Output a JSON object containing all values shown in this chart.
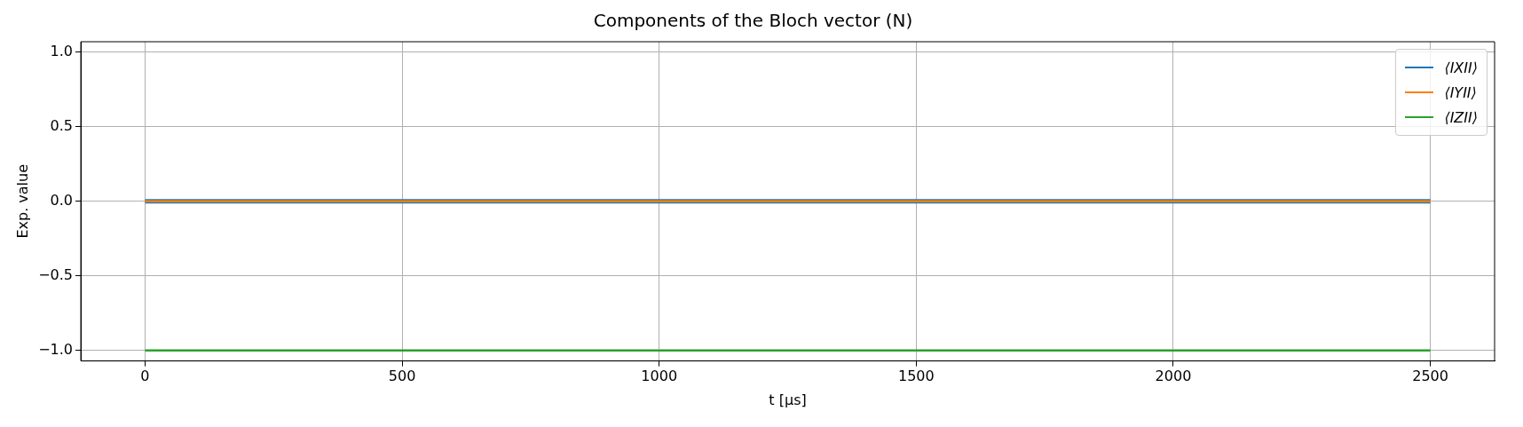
{
  "chart_data": {
    "type": "line",
    "title": "Components of the Bloch vector (N)",
    "xlabel": "t [μs]",
    "ylabel": "Exp. value",
    "x": [
      0,
      2500
    ],
    "series": [
      {
        "name": "⟨IXII⟩",
        "color": "#1f77b4",
        "values": [
          0,
          0
        ]
      },
      {
        "name": "⟨IYII⟩",
        "color": "#ff7f0e",
        "values": [
          0,
          0
        ]
      },
      {
        "name": "⟨IZII⟩",
        "color": "#2ca02c",
        "values": [
          -1,
          -1
        ]
      }
    ],
    "xlim": [
      -125,
      2625
    ],
    "xticks": [
      0,
      500,
      1000,
      1500,
      2000,
      2500
    ],
    "ylim": [
      -1.07,
      1.07
    ],
    "yticks": [
      {
        "value": -1,
        "label": "−1.0"
      },
      {
        "value": -0.5,
        "label": "−0.5"
      },
      {
        "value": 0,
        "label": "0.0"
      },
      {
        "value": 0.5,
        "label": "0.5"
      },
      {
        "value": 1,
        "label": "1.0"
      }
    ],
    "grid": true,
    "legend": "top right",
    "marker": "none",
    "line_style": "solid"
  }
}
